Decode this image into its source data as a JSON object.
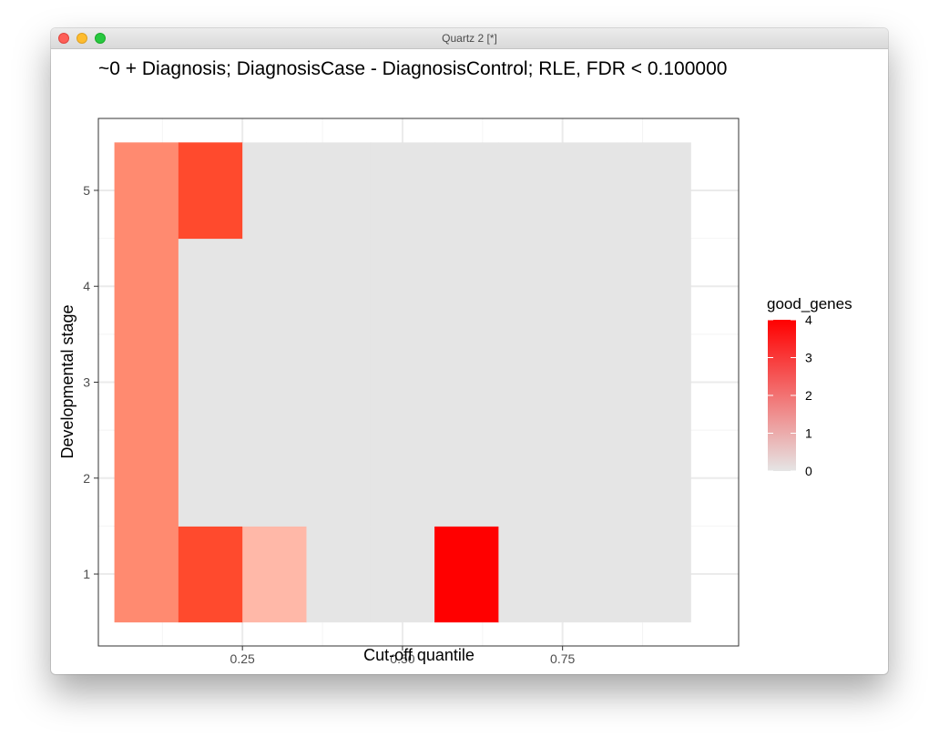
{
  "window": {
    "title": "Quartz 2 [*]"
  },
  "chart_data": {
    "type": "heatmap",
    "title": "~0 + Diagnosis; DiagnosisCase - DiagnosisControl; RLE, FDR < 0.100000",
    "xlabel": "Cut-off quantile",
    "ylabel": "Developmental stage",
    "xlim": [
      0.025,
      1.025
    ],
    "ylim": [
      0.25,
      5.75
    ],
    "x_ticks": [
      0.25,
      0.5,
      0.75
    ],
    "x_tick_labels": [
      "0.25",
      "0.50",
      "0.75"
    ],
    "y_ticks": [
      1,
      2,
      3,
      4,
      5
    ],
    "y_tick_labels": [
      "1",
      "2",
      "3",
      "4",
      "5"
    ],
    "x": [
      0.1,
      0.2,
      0.3,
      0.4,
      0.5,
      0.6,
      0.7,
      0.8,
      0.9
    ],
    "y": [
      1,
      2,
      3,
      4,
      5
    ],
    "z": [
      [
        2,
        3,
        1,
        0,
        0,
        4,
        0,
        0,
        0
      ],
      [
        2,
        0,
        0,
        0,
        0,
        0,
        0,
        0,
        0
      ],
      [
        2,
        0,
        0,
        0,
        0,
        0,
        0,
        0,
        0
      ],
      [
        2,
        0,
        0,
        0,
        0,
        0,
        0,
        0,
        0
      ],
      [
        2,
        3,
        0,
        0,
        0,
        0,
        0,
        0,
        0
      ]
    ],
    "legend": {
      "title": "good_genes",
      "position": "right",
      "range": [
        0,
        4
      ],
      "ticks": [
        0,
        1,
        2,
        3,
        4
      ],
      "tick_labels": [
        "0",
        "1",
        "2",
        "3",
        "4"
      ],
      "low_color": "#e5e5e5",
      "high_color": "#ff0000"
    },
    "colors": {
      "panel_background": "#ffffff",
      "grid_major": "#ebebeb",
      "grid_minor": "#f4f4f4",
      "panel_border": "#333333",
      "tile_zero": "#e5e5e5",
      "tile_1": "#ffb8a8",
      "tile_2": "#ff8a70",
      "tile_3": "#ff4a2d",
      "tile_4": "#ff0000"
    },
    "grid": true
  }
}
